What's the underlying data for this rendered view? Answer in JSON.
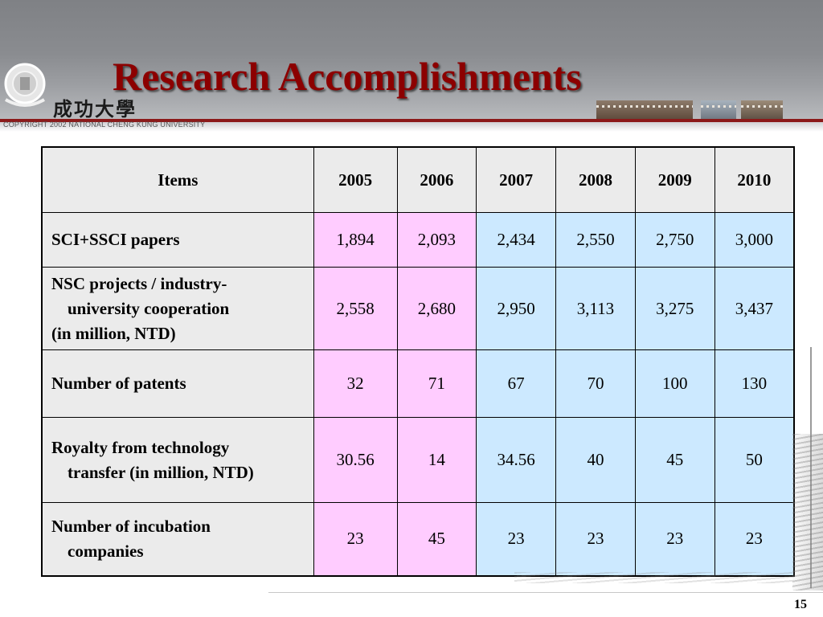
{
  "slide": {
    "title": "Research Accomplishments",
    "copyright": "COPYRIGHT 2002 NATIONAL CHENG KUNG UNIVERSITY",
    "university_name": "成功大學",
    "page_number": "15"
  },
  "colors": {
    "title": "#8c0000",
    "header_gray": "#ebebeb",
    "pink_columns": "#ffccff",
    "blue_columns": "#cce9ff"
  },
  "table": {
    "header": [
      "Items",
      "2005",
      "2006",
      "2007",
      "2008",
      "2009",
      "2010"
    ],
    "rows": [
      {
        "item_lines": [
          "SCI+SSCI papers"
        ],
        "values": [
          "1,894",
          "2,093",
          "2,434",
          "2,550",
          "2,750",
          "3,000"
        ]
      },
      {
        "item_lines": [
          "NSC projects / industry-",
          "university cooperation",
          "(in million, NTD)"
        ],
        "values": [
          "2,558",
          "2,680",
          "2,950",
          "3,113",
          "3,275",
          "3,437"
        ]
      },
      {
        "item_lines": [
          "Number of patents"
        ],
        "values": [
          "32",
          "71",
          "67",
          "70",
          "100",
          "130"
        ]
      },
      {
        "item_lines": [
          "Royalty from technology",
          "transfer (in million, NTD)"
        ],
        "values": [
          "30.56",
          "14",
          "34.56",
          "40",
          "45",
          "50"
        ]
      },
      {
        "item_lines": [
          "Number of incubation",
          "companies"
        ],
        "values": [
          "23",
          "45",
          "23",
          "23",
          "23",
          "23"
        ]
      }
    ]
  }
}
